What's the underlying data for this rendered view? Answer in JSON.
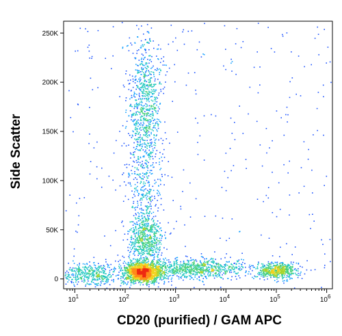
{
  "chart_data": {
    "type": "scatter",
    "subtype": "flow-cytometry-density-dot-plot",
    "title": "",
    "xlabel": "CD20 (purified) / GAM APC",
    "ylabel": "Side Scatter",
    "x_scale": "log",
    "xlim": [
      6,
      1300000
    ],
    "ylim": [
      -10000,
      262000
    ],
    "x_ticks": [
      {
        "value": 10,
        "base": "10",
        "exp": "1"
      },
      {
        "value": 100,
        "base": "10",
        "exp": "2"
      },
      {
        "value": 1000,
        "base": "10",
        "exp": "3"
      },
      {
        "value": 10000,
        "base": "10",
        "exp": "4"
      },
      {
        "value": 100000,
        "base": "10",
        "exp": "5"
      },
      {
        "value": 1000000,
        "base": "10",
        "exp": "6"
      }
    ],
    "y_ticks": [
      {
        "value": 0,
        "label": "0"
      },
      {
        "value": 50000,
        "label": "50K"
      },
      {
        "value": 100000,
        "label": "100K"
      },
      {
        "value": 150000,
        "label": "150K"
      },
      {
        "value": 200000,
        "label": "200K"
      },
      {
        "value": 250000,
        "label": "250K"
      }
    ],
    "grid": false,
    "density_colors": [
      "#0000cc",
      "#1a52ff",
      "#14a0ff",
      "#22c8c0",
      "#46d07a",
      "#a8d42a",
      "#f2d21e",
      "#ff8a1a",
      "#ee2a12"
    ],
    "populations": [
      {
        "x_center": 220,
        "x_spread_decades": 0.18,
        "y_center": 7000,
        "y_spread": 5000,
        "weight": 0.95
      },
      {
        "x_center": 250,
        "x_spread_decades": 0.17,
        "y_center": 175000,
        "y_spread": 35000,
        "weight": 0.45
      },
      {
        "x_center": 240,
        "x_spread_decades": 0.17,
        "y_center": 90000,
        "y_spread": 30000,
        "weight": 0.18
      },
      {
        "x_center": 250,
        "x_spread_decades": 0.17,
        "y_center": 40000,
        "y_spread": 12000,
        "weight": 0.32
      },
      {
        "x_center": 2500,
        "x_spread_decades": 0.55,
        "y_center": 11000,
        "y_spread": 5000,
        "weight": 0.45
      },
      {
        "x_center": 100000,
        "x_spread_decades": 0.2,
        "y_center": 9000,
        "y_spread": 4000,
        "weight": 0.3
      },
      {
        "x_center": 20,
        "x_spread_decades": 0.3,
        "y_center": 5000,
        "y_spread": 6000,
        "weight": 0.25
      }
    ]
  }
}
